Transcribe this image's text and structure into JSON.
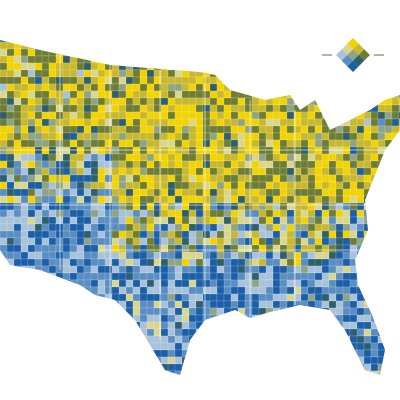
{
  "map": {
    "palette": [
      "#f1d302",
      "#c8b82e",
      "#6e7d34",
      "#d9d68f",
      "#8ea485",
      "#2e5f6c",
      "#a8c2da",
      "#5a8ec2",
      "#1c5fa9"
    ]
  }
}
